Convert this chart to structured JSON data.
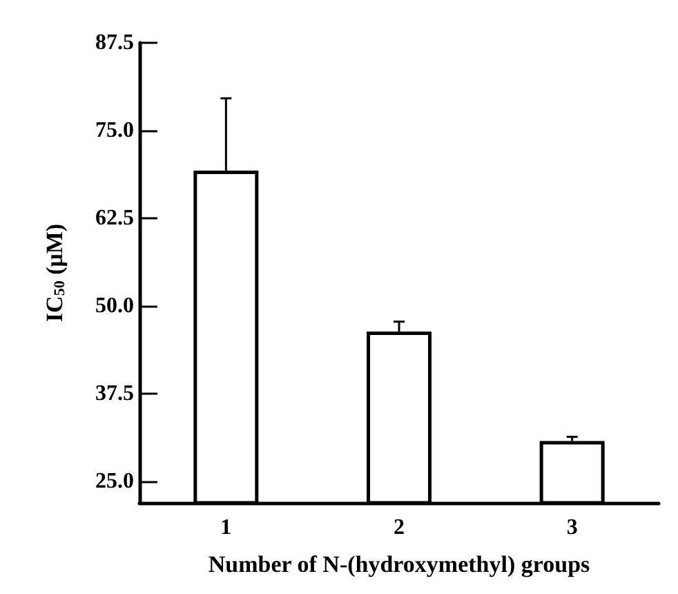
{
  "chart_data": {
    "type": "bar",
    "xlabel": "Number of N-(hydroxymethyl) groups",
    "ylabel": "IC$_{50}$ (μM)",
    "categories": [
      "1",
      "2",
      "3"
    ],
    "values": [
      69.3,
      46.4,
      30.8
    ],
    "errors": [
      10.3,
      1.4,
      0.6
    ],
    "color": "#ffffff",
    "ylim": [
      22,
      87.5
    ],
    "yticks": [
      {
        "value": 25,
        "label": "25.0"
      },
      37.5,
      {
        "value": 50,
        "label": "50.0"
      },
      62.5,
      {
        "value": 75,
        "label": "75.0"
      },
      87.5
    ],
    "grid": false
  }
}
